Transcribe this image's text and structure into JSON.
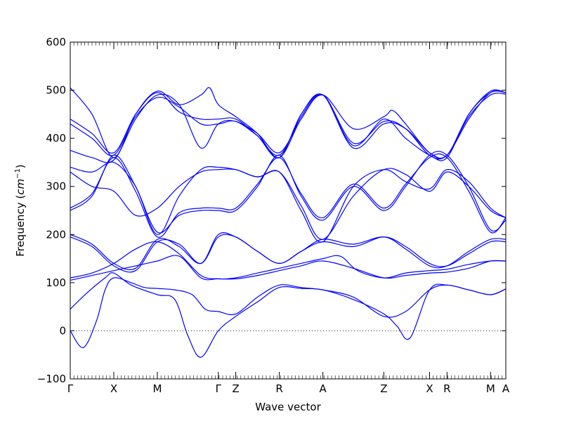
{
  "chart_data": {
    "type": "line",
    "xlabel": "Wave vector",
    "ylabel": "Frequency",
    "ylabel_unit": "cm",
    "ylabel_unit_exponent": "−1",
    "ylim": [
      -100,
      600
    ],
    "yticks": [
      -100,
      0,
      100,
      200,
      300,
      400,
      500,
      600
    ],
    "xlim": [
      0,
      10
    ],
    "high_symmetry_points": [
      {
        "label": "Γ",
        "x": 0
      },
      {
        "label": "X",
        "x": 1
      },
      {
        "label": "M",
        "x": 2
      },
      {
        "label": "Γ",
        "x": 3.4
      },
      {
        "label": "Z",
        "x": 3.8
      },
      {
        "label": "R",
        "x": 4.8
      },
      {
        "label": "A",
        "x": 5.8
      },
      {
        "label": "Z",
        "x": 7.2
      },
      {
        "label": "X",
        "x": 8.25
      },
      {
        "label": "R",
        "x": 8.65
      },
      {
        "label": "M",
        "x": 9.65
      },
      {
        "label": "A",
        "x": 10
      }
    ],
    "zero_line": true,
    "line_color": "#0000ff",
    "series": [
      {
        "x": [
          0,
          0.3,
          0.6,
          0.8,
          1.0,
          1.4,
          1.7,
          2.0,
          2.4,
          2.8,
          3.1,
          3.4,
          3.8,
          4.3,
          4.8,
          5.3,
          5.8,
          6.5,
          7.2,
          7.7,
          8.25,
          8.65,
          9.15,
          9.65,
          10
        ],
        "y": [
          0,
          -35,
          20,
          85,
          110,
          100,
          90,
          88,
          85,
          75,
          45,
          40,
          35,
          70,
          95,
          90,
          85,
          70,
          30,
          40,
          85,
          95,
          85,
          75,
          87
        ]
      },
      {
        "x": [
          0,
          0.4,
          0.8,
          1.0,
          1.4,
          2.0,
          2.4,
          2.7,
          3.0,
          3.4,
          3.8,
          4.3,
          4.8,
          5.3,
          5.8,
          6.5,
          7.2,
          7.5,
          7.8,
          8.25,
          8.65,
          9.15,
          9.65,
          10
        ],
        "y": [
          45,
          80,
          110,
          120,
          95,
          75,
          65,
          -10,
          -55,
          0,
          30,
          60,
          90,
          88,
          85,
          65,
          35,
          10,
          -15,
          85,
          95,
          85,
          75,
          87
        ]
      },
      {
        "x": [
          0,
          0.5,
          1.0,
          1.5,
          2.0,
          2.5,
          3.0,
          3.4,
          3.8,
          4.3,
          4.8,
          5.3,
          5.8,
          6.5,
          7.2,
          7.7,
          8.25,
          8.65,
          9.15,
          9.65,
          10
        ],
        "y": [
          105,
          115,
          125,
          135,
          145,
          155,
          110,
          108,
          108,
          115,
          125,
          135,
          145,
          130,
          110,
          115,
          120,
          122,
          130,
          145,
          145
        ]
      },
      {
        "x": [
          0,
          0.5,
          1.0,
          1.5,
          2.0,
          2.5,
          3.0,
          3.4,
          3.8,
          4.3,
          4.8,
          5.3,
          5.8,
          6.2,
          6.6,
          7.2,
          7.7,
          8.25,
          8.65,
          9.15,
          9.65,
          10
        ],
        "y": [
          110,
          120,
          140,
          170,
          185,
          160,
          115,
          108,
          110,
          120,
          130,
          140,
          150,
          155,
          125,
          110,
          120,
          125,
          128,
          138,
          145,
          145
        ]
      },
      {
        "x": [
          0,
          0.5,
          1.0,
          1.5,
          2.0,
          2.5,
          3.0,
          3.4,
          3.8,
          4.3,
          4.8,
          5.3,
          5.8,
          6.5,
          7.2,
          7.7,
          8.25,
          8.65,
          9.15,
          9.65,
          10
        ],
        "y": [
          200,
          180,
          140,
          130,
          190,
          175,
          140,
          200,
          195,
          165,
          140,
          165,
          185,
          175,
          195,
          175,
          140,
          135,
          160,
          185,
          185
        ]
      },
      {
        "x": [
          0,
          0.5,
          1.0,
          1.5,
          2.0,
          2.5,
          3.0,
          3.4,
          3.8,
          4.3,
          4.8,
          5.3,
          5.8,
          6.5,
          7.2,
          7.7,
          8.25,
          8.65,
          9.15,
          9.65,
          10
        ],
        "y": [
          195,
          175,
          135,
          125,
          185,
          180,
          140,
          195,
          195,
          165,
          140,
          165,
          190,
          180,
          195,
          170,
          135,
          135,
          165,
          190,
          190
        ]
      },
      {
        "x": [
          0,
          0.5,
          1.0,
          1.5,
          2.0,
          2.5,
          3.0,
          3.4,
          3.8,
          4.3,
          4.8,
          5.3,
          5.8,
          6.5,
          7.2,
          7.7,
          8.25,
          8.65,
          9.15,
          9.65,
          10
        ],
        "y": [
          250,
          280,
          365,
          300,
          205,
          240,
          250,
          250,
          250,
          300,
          365,
          280,
          230,
          300,
          250,
          300,
          365,
          365,
          300,
          210,
          230
        ]
      },
      {
        "x": [
          0,
          0.5,
          1.0,
          1.5,
          2.0,
          2.5,
          3.0,
          3.4,
          3.8,
          4.3,
          4.8,
          5.3,
          5.8,
          6.5,
          7.2,
          7.7,
          8.25,
          8.65,
          9.15,
          9.65,
          10
        ],
        "y": [
          255,
          285,
          360,
          290,
          195,
          245,
          255,
          255,
          255,
          305,
          360,
          285,
          235,
          305,
          255,
          305,
          360,
          360,
          290,
          205,
          235
        ]
      },
      {
        "x": [
          0,
          0.5,
          1.0,
          1.5,
          2.0,
          2.5,
          3.0,
          3.4,
          3.8,
          4.3,
          4.8,
          5.3,
          5.8,
          6.5,
          7.2,
          7.7,
          8.25,
          8.65,
          9.15,
          9.65,
          10
        ],
        "y": [
          330,
          300,
          290,
          240,
          255,
          300,
          330,
          335,
          335,
          320,
          330,
          260,
          190,
          280,
          335,
          325,
          290,
          330,
          300,
          250,
          235
        ]
      },
      {
        "x": [
          0,
          0.5,
          1.0,
          1.5,
          2.0,
          2.5,
          3.0,
          3.4,
          3.8,
          4.3,
          4.8,
          5.3,
          5.8,
          6.5,
          7.2,
          7.7,
          8.25,
          8.65,
          9.15,
          9.65,
          10
        ],
        "y": [
          340,
          330,
          350,
          300,
          200,
          280,
          335,
          340,
          335,
          320,
          330,
          250,
          185,
          300,
          335,
          310,
          295,
          335,
          310,
          255,
          235
        ]
      },
      {
        "x": [
          0,
          0.5,
          1.0,
          1.5,
          2.0,
          2.5,
          3.0,
          3.4,
          3.8,
          4.3,
          4.8,
          5.3,
          5.8,
          6.5,
          7.2,
          7.7,
          8.25,
          8.65,
          9.15,
          9.65,
          10
        ],
        "y": [
          375,
          360,
          355,
          440,
          490,
          470,
          380,
          430,
          435,
          410,
          370,
          440,
          490,
          390,
          435,
          420,
          365,
          365,
          440,
          495,
          495
        ]
      },
      {
        "x": [
          0,
          0.5,
          1.0,
          1.5,
          2.0,
          2.5,
          3.0,
          3.4,
          3.8,
          4.3,
          4.8,
          5.3,
          5.8,
          6.5,
          7.2,
          7.7,
          8.25,
          8.65,
          9.15,
          9.65,
          10
        ],
        "y": [
          430,
          400,
          365,
          445,
          485,
          465,
          430,
          430,
          435,
          405,
          365,
          445,
          490,
          380,
          430,
          420,
          370,
          365,
          445,
          490,
          492
        ]
      },
      {
        "x": [
          0,
          0.5,
          1.0,
          1.5,
          2.0,
          2.5,
          3.0,
          3.4,
          3.8,
          4.3,
          4.8,
          5.3,
          5.8,
          6.5,
          7.2,
          7.7,
          8.25,
          8.65,
          9.15,
          9.65,
          10
        ],
        "y": [
          440,
          410,
          370,
          450,
          495,
          455,
          440,
          440,
          440,
          405,
          360,
          450,
          490,
          385,
          440,
          400,
          365,
          360,
          450,
          495,
          495
        ]
      },
      {
        "x": [
          0,
          0.5,
          1.0,
          1.5,
          2.0,
          2.5,
          3.0,
          3.2,
          3.4,
          3.8,
          4.3,
          4.8,
          5.3,
          5.8,
          6.5,
          7.2,
          7.4,
          7.7,
          8.25,
          8.65,
          9.15,
          9.65,
          10
        ],
        "y": [
          505,
          450,
          360,
          450,
          498,
          470,
          490,
          505,
          470,
          445,
          410,
          360,
          440,
          490,
          420,
          445,
          458,
          430,
          370,
          365,
          450,
          498,
          495
        ]
      }
    ]
  }
}
